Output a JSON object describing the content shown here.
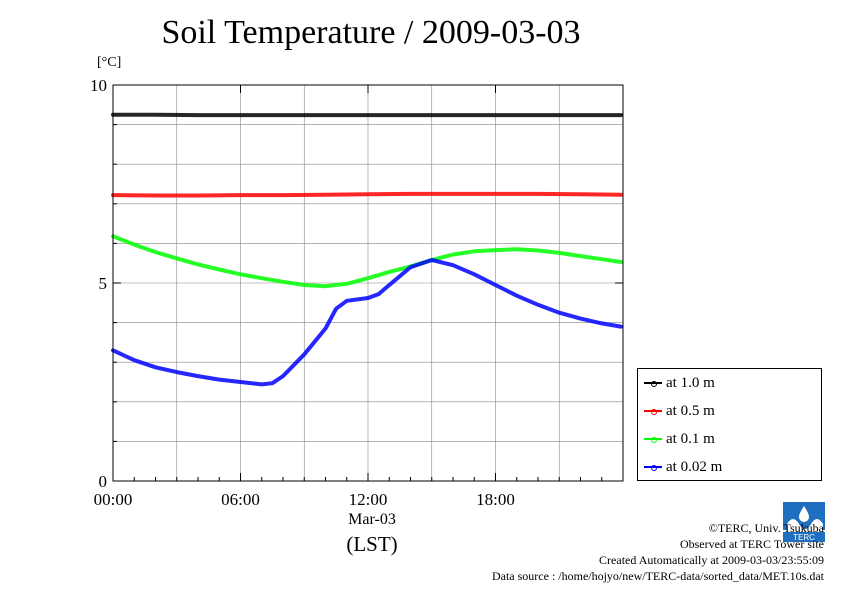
{
  "title": "Soil Temperature / 2009-03-03",
  "unit_label": "[°C]",
  "x_sub_label": "Mar-03",
  "x_axis_label": "(LST)",
  "credits": [
    "©TERC, Univ. Tsukuba",
    "Observed at TERC Tower site",
    "Created Automatically at 2009-03-03/23:55:09",
    "Data source : /home/hojyo/new/TERC-data/sorted_data/MET.10s.dat"
  ],
  "logo_text": "TERC",
  "chart_data": {
    "type": "line",
    "title": "Soil Temperature / 2009-03-03",
    "xlabel": "(LST)",
    "ylabel": "[°C]",
    "xlim": [
      0,
      24
    ],
    "ylim": [
      0,
      10
    ],
    "x_ticks": [
      0,
      6,
      12,
      18
    ],
    "x_tick_labels": [
      "00:00",
      "06:00",
      "12:00",
      "18:00"
    ],
    "y_ticks": [
      0,
      5,
      10
    ],
    "y_tick_labels": [
      "0",
      "5",
      "10"
    ],
    "grid": true,
    "legend_position": "right",
    "series": [
      {
        "name": "at 1.0 m",
        "color": "#000000",
        "x": [
          0,
          2,
          4,
          6,
          8,
          10,
          12,
          14,
          16,
          18,
          20,
          22,
          23.9
        ],
        "y": [
          9.25,
          9.25,
          9.24,
          9.24,
          9.24,
          9.24,
          9.24,
          9.24,
          9.24,
          9.24,
          9.24,
          9.24,
          9.24
        ]
      },
      {
        "name": "at 0.5 m",
        "color": "#ff0000",
        "x": [
          0,
          2,
          4,
          6,
          8,
          10,
          12,
          14,
          16,
          18,
          20,
          22,
          23.9
        ],
        "y": [
          7.22,
          7.21,
          7.21,
          7.22,
          7.22,
          7.23,
          7.24,
          7.25,
          7.25,
          7.25,
          7.25,
          7.24,
          7.23
        ]
      },
      {
        "name": "at 0.1 m",
        "color": "#00ff00",
        "x": [
          0,
          1,
          2,
          3,
          4,
          5,
          6,
          7,
          8,
          9,
          10,
          11,
          12,
          13,
          14,
          15,
          16,
          17,
          18,
          19,
          20,
          21,
          22,
          23,
          23.9
        ],
        "y": [
          6.18,
          5.97,
          5.78,
          5.62,
          5.47,
          5.34,
          5.22,
          5.12,
          5.03,
          4.95,
          4.92,
          4.98,
          5.12,
          5.28,
          5.42,
          5.58,
          5.72,
          5.8,
          5.83,
          5.85,
          5.82,
          5.76,
          5.68,
          5.6,
          5.53
        ]
      },
      {
        "name": "at 0.02 m",
        "color": "#0000ff",
        "x": [
          0,
          1,
          2,
          3,
          4,
          5,
          6,
          7,
          7.5,
          8,
          9,
          10,
          10.5,
          11,
          12,
          12.5,
          13,
          14,
          15,
          16,
          17,
          18,
          19,
          20,
          21,
          22,
          23,
          23.9
        ],
        "y": [
          3.3,
          3.05,
          2.87,
          2.75,
          2.65,
          2.56,
          2.5,
          2.44,
          2.47,
          2.65,
          3.2,
          3.85,
          4.35,
          4.55,
          4.62,
          4.72,
          4.95,
          5.4,
          5.58,
          5.45,
          5.22,
          4.95,
          4.68,
          4.45,
          4.25,
          4.1,
          3.98,
          3.9
        ]
      }
    ]
  }
}
